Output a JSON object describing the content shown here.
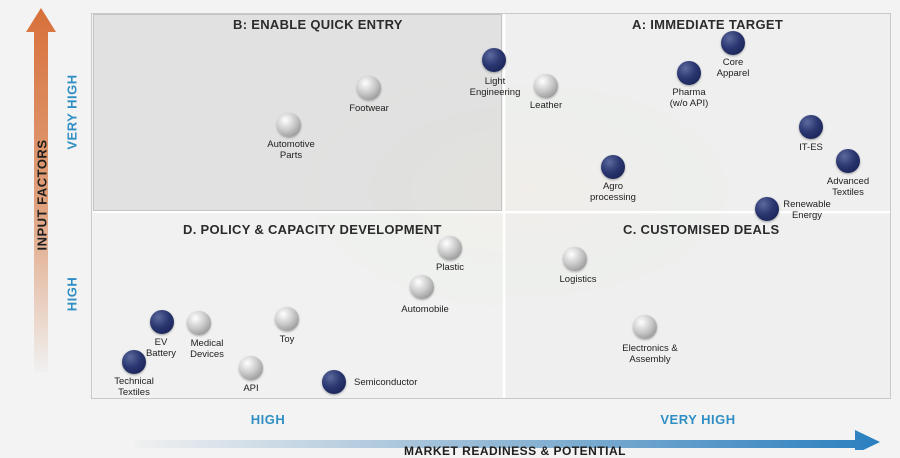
{
  "quadrants": {
    "b": "B:  ENABLE QUICK ENTRY",
    "a": "A: IMMEDIATE TARGET",
    "d": "D. POLICY & CAPACITY DEVELOPMENT",
    "c": "C. CUSTOMISED DEALS"
  },
  "axes": {
    "y_title": "INPUT FACTORS",
    "y_high": "HIGH",
    "y_very_high": "VERY HIGH",
    "x_title": "MARKET READINESS & POTENTIAL",
    "x_high": "HIGH",
    "x_very_high": "VERY HIGH"
  },
  "colors": {
    "navy": "#1f2a5e",
    "grey": "#b0b0b0",
    "accent_blue": "#2f8fc4",
    "arrow_orange": "#d8703a"
  },
  "sectors": [
    {
      "label": "Light\nEngineering",
      "color": "navy"
    },
    {
      "label": "Leather",
      "color": "grey"
    },
    {
      "label": "Footwear",
      "color": "grey"
    },
    {
      "label": "Automotive\nParts",
      "color": "grey"
    },
    {
      "label": "Core\nApparel",
      "color": "navy"
    },
    {
      "label": "Pharma\n(w/o API)",
      "color": "navy"
    },
    {
      "label": "IT-ES",
      "color": "navy"
    },
    {
      "label": "Advanced\nTextiles",
      "color": "navy"
    },
    {
      "label": "Agro\nprocessing",
      "color": "navy"
    },
    {
      "label": "Renewable\nEnergy",
      "color": "navy"
    },
    {
      "label": "Plastic",
      "color": "grey"
    },
    {
      "label": "Automobile",
      "color": "grey"
    },
    {
      "label": "Toy",
      "color": "grey"
    },
    {
      "label": "EV\nBattery",
      "color": "navy"
    },
    {
      "label": "Medical\nDevices",
      "color": "grey"
    },
    {
      "label": "Technical\nTextiles",
      "color": "navy"
    },
    {
      "label": "API",
      "color": "grey"
    },
    {
      "label": "Semiconductor",
      "color": "navy"
    },
    {
      "label": "Logistics",
      "color": "grey"
    },
    {
      "label": "Electronics &\nAssembly",
      "color": "grey"
    }
  ]
}
